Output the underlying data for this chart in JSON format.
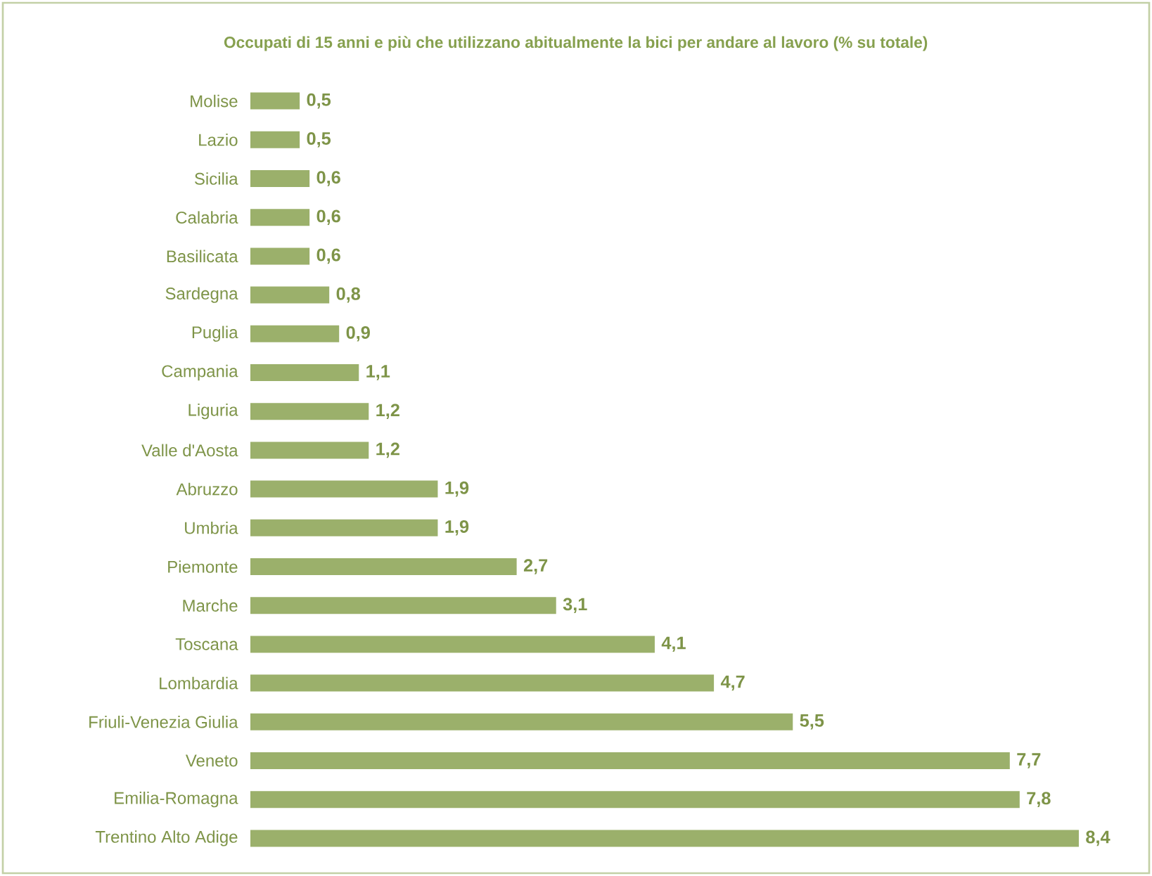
{
  "chart_data": {
    "type": "bar",
    "orientation": "horizontal",
    "title": "Occupati di 15 anni e più che utilizzano abitualmente la bici per andare al lavoro (% su totale)",
    "categories": [
      "Molise",
      "Lazio",
      "Sicilia",
      "Calabria",
      "Basilicata",
      "Sardegna",
      "Puglia",
      "Campania",
      "Liguria",
      "Valle d'Aosta",
      "Abruzzo",
      "Umbria",
      "Piemonte",
      "Marche",
      "Toscana",
      "Lombardia",
      "Friuli-Venezia Giulia",
      "Veneto",
      "Emilia-Romagna",
      "Trentino Alto Adige"
    ],
    "values": [
      0.5,
      0.5,
      0.6,
      0.6,
      0.6,
      0.8,
      0.9,
      1.1,
      1.2,
      1.2,
      1.9,
      1.9,
      2.7,
      3.1,
      4.1,
      4.7,
      5.5,
      7.7,
      7.8,
      8.4
    ],
    "value_labels": [
      "0,5",
      "0,5",
      "0,6",
      "0,6",
      "0,6",
      "0,8",
      "0,9",
      "1,1",
      "1,2",
      "1,2",
      "1,9",
      "1,9",
      "2,7",
      "3,1",
      "4,1",
      "4,7",
      "5,5",
      "7,7",
      "7,8",
      "8,4"
    ],
    "color": "#9bb06b"
  }
}
